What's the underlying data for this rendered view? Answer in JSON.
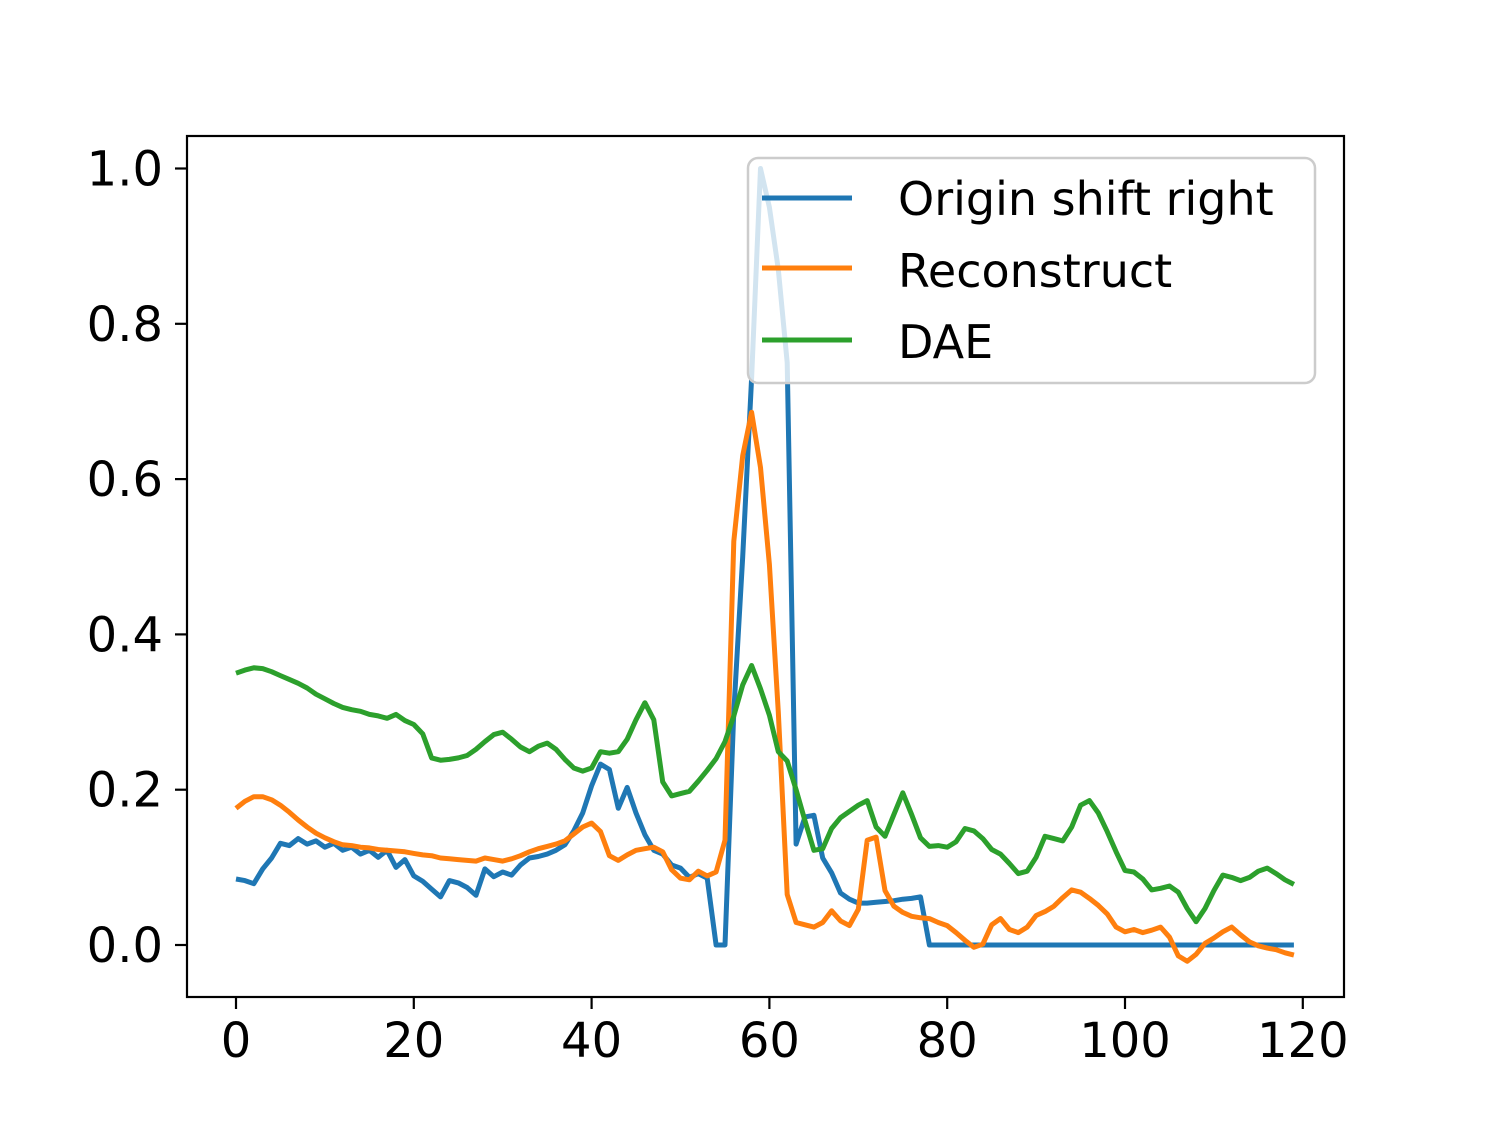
{
  "chart_data": {
    "type": "line",
    "title": "",
    "xlabel": "",
    "ylabel": "",
    "grid": false,
    "legend_position": "upper right",
    "xlim": [
      -5.5,
      124.6
    ],
    "ylim": [
      -0.067,
      1.042
    ],
    "x_ticks": [
      0,
      20,
      40,
      60,
      80,
      100,
      120
    ],
    "x_tick_labels": [
      "0",
      "20",
      "40",
      "60",
      "80",
      "100",
      "120"
    ],
    "y_ticks": [
      0.0,
      0.2,
      0.4,
      0.6,
      0.8,
      1.0
    ],
    "y_tick_labels": [
      "0.0",
      "0.2",
      "0.4",
      "0.6",
      "0.8",
      "1.0"
    ],
    "x_start": 0,
    "x_step": 1,
    "n_points": 120,
    "series": [
      {
        "name": "Origin shift right",
        "color": "#1f77b4",
        "values": [
          0.085,
          0.083,
          0.079,
          0.098,
          0.112,
          0.131,
          0.128,
          0.137,
          0.13,
          0.134,
          0.126,
          0.131,
          0.122,
          0.126,
          0.117,
          0.122,
          0.113,
          0.122,
          0.1,
          0.11,
          0.089,
          0.082,
          0.072,
          0.062,
          0.083,
          0.08,
          0.074,
          0.064,
          0.098,
          0.088,
          0.094,
          0.09,
          0.103,
          0.112,
          0.114,
          0.117,
          0.122,
          0.129,
          0.147,
          0.17,
          0.205,
          0.233,
          0.226,
          0.176,
          0.203,
          0.17,
          0.142,
          0.122,
          0.117,
          0.103,
          0.099,
          0.087,
          0.092,
          0.086,
          0.0,
          0.0,
          0.3,
          0.5,
          0.73,
          1.0,
          0.95,
          0.87,
          0.75,
          0.13,
          0.165,
          0.167,
          0.112,
          0.093,
          0.067,
          0.059,
          0.054,
          0.054,
          0.055,
          0.056,
          0.057,
          0.059,
          0.06,
          0.062,
          0.0,
          0.0,
          0.0,
          0.0,
          0.0,
          0.0,
          0.0,
          0.0,
          0.0,
          0.0,
          0.0,
          0.0,
          0.0,
          0.0,
          0.0,
          0.0,
          0.0,
          0.0,
          0.0,
          0.0,
          0.0,
          0.0,
          0.0,
          0.0,
          0.0,
          0.0,
          0.0,
          0.0,
          0.0,
          0.0,
          0.0,
          0.0,
          0.0,
          0.0,
          0.0,
          0.0,
          0.0,
          0.0,
          0.0,
          0.0,
          0.0,
          0.0
        ]
      },
      {
        "name": "Reconstruct",
        "color": "#ff7f0e",
        "values": [
          0.176,
          0.185,
          0.191,
          0.191,
          0.187,
          0.18,
          0.171,
          0.161,
          0.152,
          0.144,
          0.138,
          0.133,
          0.129,
          0.128,
          0.126,
          0.125,
          0.123,
          0.122,
          0.121,
          0.12,
          0.118,
          0.116,
          0.115,
          0.112,
          0.111,
          0.11,
          0.109,
          0.108,
          0.112,
          0.11,
          0.108,
          0.111,
          0.115,
          0.12,
          0.124,
          0.127,
          0.13,
          0.134,
          0.143,
          0.152,
          0.157,
          0.146,
          0.115,
          0.109,
          0.116,
          0.122,
          0.124,
          0.126,
          0.12,
          0.097,
          0.086,
          0.084,
          0.095,
          0.089,
          0.094,
          0.135,
          0.52,
          0.63,
          0.686,
          0.615,
          0.49,
          0.3,
          0.065,
          0.029,
          0.026,
          0.023,
          0.029,
          0.044,
          0.031,
          0.025,
          0.046,
          0.135,
          0.139,
          0.07,
          0.05,
          0.042,
          0.037,
          0.035,
          0.034,
          0.029,
          0.025,
          0.016,
          0.006,
          -0.003,
          0.001,
          0.026,
          0.034,
          0.02,
          0.016,
          0.023,
          0.038,
          0.043,
          0.05,
          0.061,
          0.071,
          0.068,
          0.06,
          0.051,
          0.04,
          0.023,
          0.017,
          0.02,
          0.016,
          0.019,
          0.023,
          0.01,
          -0.014,
          -0.021,
          -0.012,
          0.002,
          0.009,
          0.017,
          0.023,
          0.013,
          0.004,
          -0.001,
          -0.004,
          -0.006,
          -0.01,
          -0.013
        ]
      },
      {
        "name": "DAE",
        "color": "#2ca02c",
        "values": [
          0.35,
          0.354,
          0.357,
          0.356,
          0.352,
          0.347,
          0.342,
          0.337,
          0.331,
          0.323,
          0.317,
          0.311,
          0.306,
          0.303,
          0.301,
          0.297,
          0.295,
          0.292,
          0.297,
          0.289,
          0.284,
          0.272,
          0.241,
          0.238,
          0.239,
          0.241,
          0.244,
          0.252,
          0.262,
          0.271,
          0.274,
          0.265,
          0.255,
          0.249,
          0.256,
          0.26,
          0.252,
          0.239,
          0.228,
          0.224,
          0.228,
          0.249,
          0.247,
          0.249,
          0.265,
          0.29,
          0.312,
          0.29,
          0.21,
          0.192,
          0.195,
          0.198,
          0.211,
          0.225,
          0.24,
          0.262,
          0.295,
          0.335,
          0.36,
          0.33,
          0.296,
          0.249,
          0.237,
          0.2,
          0.16,
          0.122,
          0.124,
          0.15,
          0.164,
          0.172,
          0.18,
          0.186,
          0.152,
          0.14,
          0.168,
          0.196,
          0.168,
          0.138,
          0.127,
          0.128,
          0.126,
          0.133,
          0.15,
          0.147,
          0.137,
          0.123,
          0.117,
          0.105,
          0.092,
          0.095,
          0.113,
          0.14,
          0.137,
          0.134,
          0.152,
          0.18,
          0.186,
          0.17,
          0.146,
          0.12,
          0.096,
          0.094,
          0.085,
          0.071,
          0.073,
          0.076,
          0.068,
          0.047,
          0.03,
          0.047,
          0.07,
          0.09,
          0.087,
          0.083,
          0.087,
          0.095,
          0.099,
          0.092,
          0.084,
          0.078
        ]
      }
    ]
  }
}
